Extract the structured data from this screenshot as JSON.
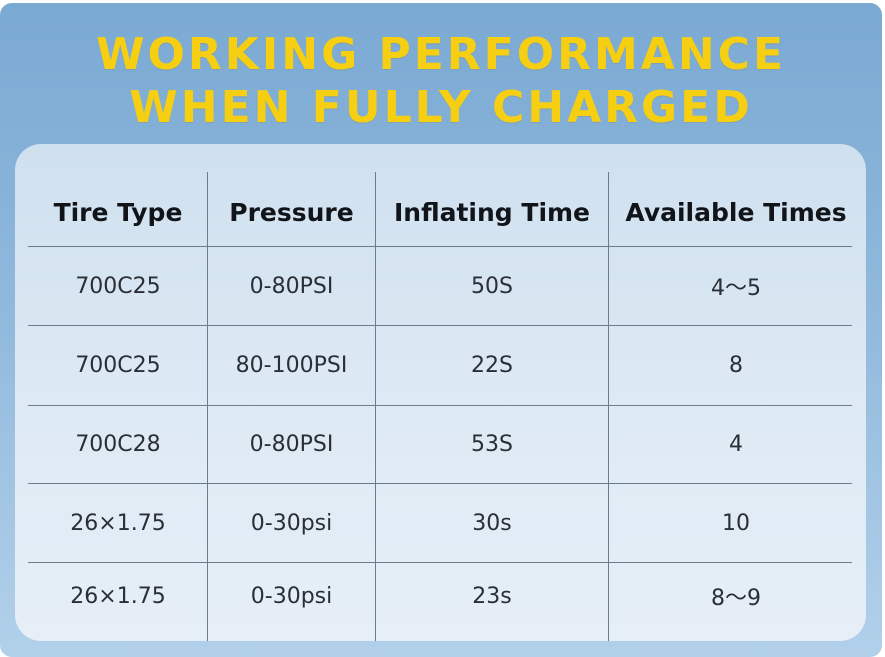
{
  "title": {
    "line1": "WORKING PERFORMANCE",
    "line2": "WHEN FULLY CHARGED"
  },
  "table": {
    "headers": [
      "Tire Type",
      "Pressure",
      "Inflating Time",
      "Available Times"
    ],
    "rows": [
      [
        "700C25",
        "0-80PSI",
        "50S",
        "4～5"
      ],
      [
        "700C25",
        "80-100PSI",
        "22S",
        "8"
      ],
      [
        "700C28",
        "0-80PSI",
        "53S",
        "4"
      ],
      [
        "26×1.75",
        "0-30psi",
        "30s",
        "10"
      ],
      [
        "26×1.75",
        "0-30psi",
        "23s",
        "8～9"
      ]
    ]
  },
  "colors": {
    "title": "#f6cf12",
    "background": "#8fb8dc",
    "panel": "#dde9f4",
    "grid": "#6b7c8c"
  }
}
